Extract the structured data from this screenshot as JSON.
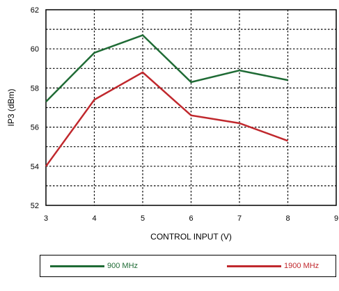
{
  "chart_data": {
    "type": "line",
    "title": "",
    "xlabel": "CONTROL INPUT (V)",
    "ylabel": "IP3 (dBm)",
    "xlim": [
      3,
      9
    ],
    "ylim": [
      52,
      62
    ],
    "xticks": [
      3,
      4,
      5,
      6,
      7,
      8,
      9
    ],
    "yticks": [
      52,
      54,
      56,
      58,
      60,
      62
    ],
    "x_tick_labels": [
      "3",
      "4",
      "5",
      "6",
      "7",
      "8",
      "9"
    ],
    "y_tick_labels": [
      "52",
      "54",
      "56",
      "58",
      "60",
      "62"
    ],
    "grid": true,
    "legend_position": "bottom",
    "series": [
      {
        "name": "900 MHz",
        "color": "#1f6b35",
        "x": [
          3,
          4,
          5,
          6,
          7,
          8
        ],
        "y": [
          57.3,
          59.8,
          60.7,
          58.3,
          58.9,
          58.4
        ]
      },
      {
        "name": "1900 MHz",
        "color": "#c0282d",
        "x": [
          3,
          4,
          5,
          6,
          7,
          8
        ],
        "y": [
          54.0,
          57.4,
          58.8,
          56.6,
          56.2,
          55.3
        ]
      }
    ]
  }
}
